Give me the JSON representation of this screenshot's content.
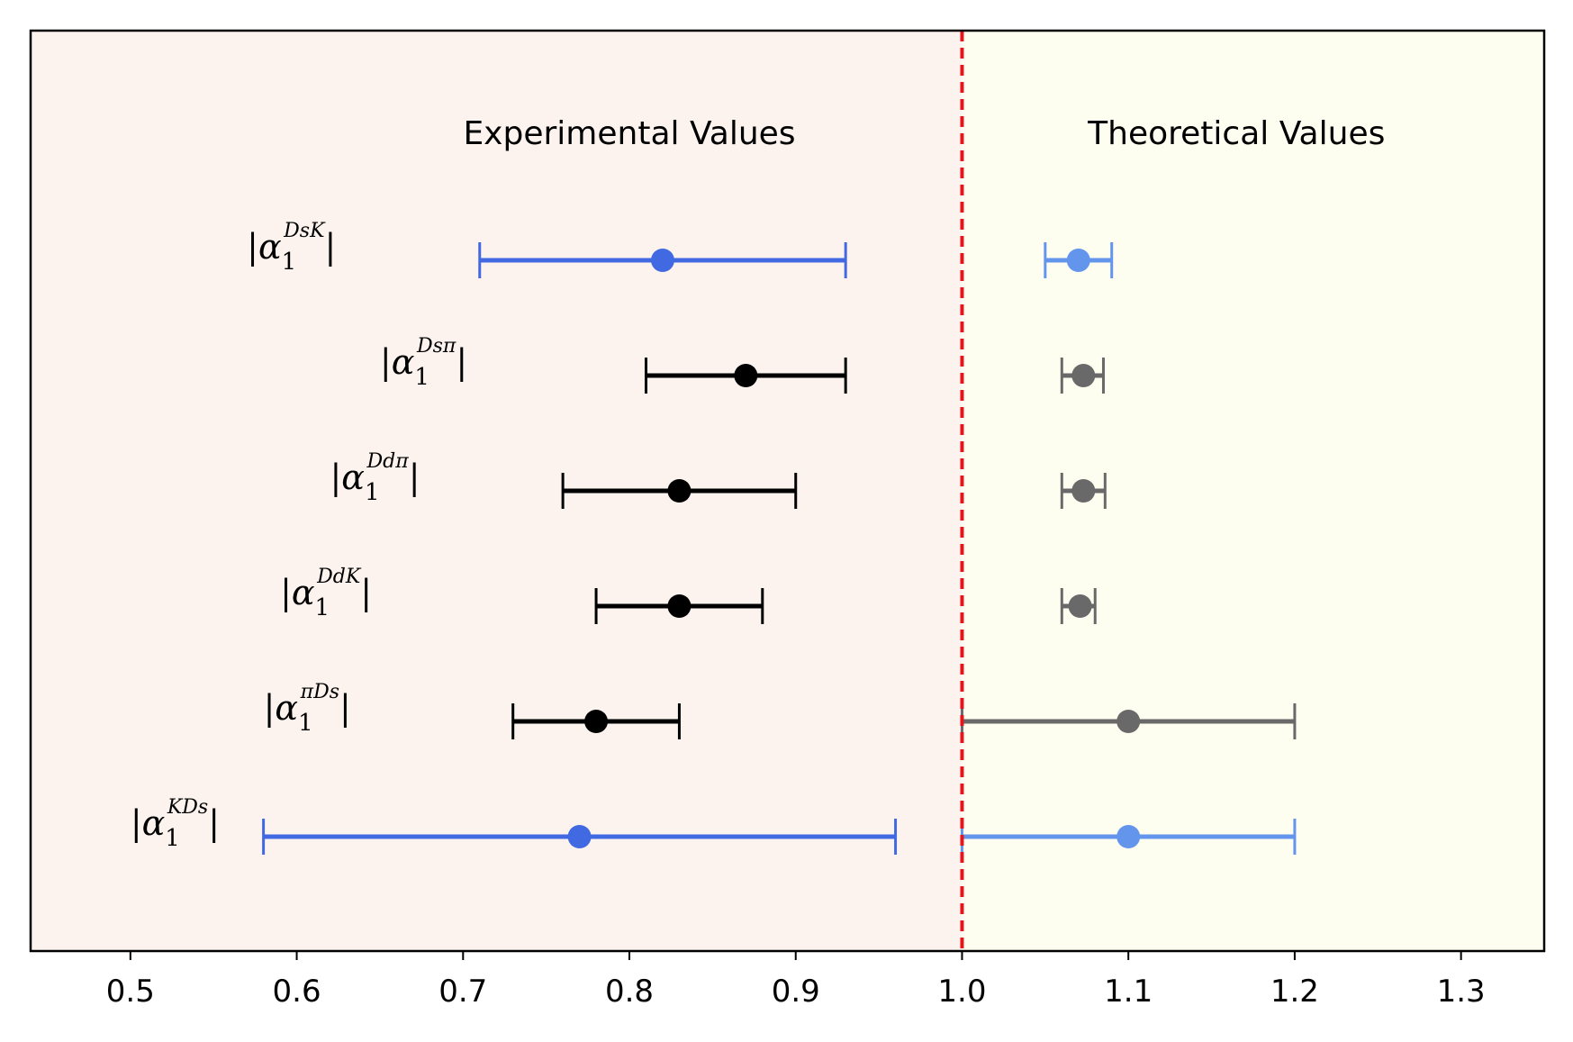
{
  "chart_data": {
    "type": "scatter",
    "title": "",
    "xlabel": "",
    "ylabel": "",
    "xlim": [
      0.44,
      1.35
    ],
    "xticks": [
      0.5,
      0.6,
      0.7,
      0.8,
      0.9,
      1.0,
      1.1,
      1.2,
      1.3
    ],
    "xtick_labels": [
      "0.5",
      "0.6",
      "0.7",
      "0.8",
      "0.9",
      "1.0",
      "1.1",
      "1.2",
      "1.3"
    ],
    "grid": false,
    "divider": {
      "x": 1.0,
      "color": "#e8141b",
      "style": "dashed"
    },
    "regions": [
      {
        "label": "Experimental Values",
        "x_range": [
          0.44,
          1.0
        ],
        "color": "#fdf3ee"
      },
      {
        "label": "Theoretical Values",
        "x_range": [
          1.0,
          1.35
        ],
        "color": "#fefef0"
      }
    ],
    "rows": [
      {
        "label_base": "|α",
        "label_sub": "1",
        "label_sup": "DsK",
        "label_close": "|",
        "experimental": {
          "value": 0.82,
          "low": 0.71,
          "high": 0.93,
          "color": "#4169e1"
        },
        "theoretical": {
          "value": 1.07,
          "low": 1.05,
          "high": 1.09,
          "color": "#6495ed"
        }
      },
      {
        "label_base": "|α",
        "label_sub": "1",
        "label_sup": "Dsπ",
        "label_close": "|",
        "experimental": {
          "value": 0.87,
          "low": 0.81,
          "high": 0.93,
          "color": "#000000"
        },
        "theoretical": {
          "value": 1.073,
          "low": 1.06,
          "high": 1.085,
          "color": "#696969"
        }
      },
      {
        "label_base": "|α",
        "label_sub": "1",
        "label_sup": "Ddπ",
        "label_close": "|",
        "experimental": {
          "value": 0.83,
          "low": 0.76,
          "high": 0.9,
          "color": "#000000"
        },
        "theoretical": {
          "value": 1.073,
          "low": 1.06,
          "high": 1.086,
          "color": "#696969"
        }
      },
      {
        "label_base": "|α",
        "label_sub": "1",
        "label_sup": "DdK",
        "label_close": "|",
        "experimental": {
          "value": 0.83,
          "low": 0.78,
          "high": 0.88,
          "color": "#000000"
        },
        "theoretical": {
          "value": 1.071,
          "low": 1.06,
          "high": 1.08,
          "color": "#696969"
        }
      },
      {
        "label_base": "|α",
        "label_sub": "1",
        "label_sup": "πDs",
        "label_close": "|",
        "experimental": {
          "value": 0.78,
          "low": 0.73,
          "high": 0.83,
          "color": "#000000"
        },
        "theoretical": {
          "value": 1.1,
          "low": 1.0,
          "high": 1.2,
          "color": "#696969"
        }
      },
      {
        "label_base": "|α",
        "label_sub": "1",
        "label_sup": "KDs",
        "label_close": "|",
        "experimental": {
          "value": 0.77,
          "low": 0.58,
          "high": 0.96,
          "color": "#4169e1"
        },
        "theoretical": {
          "value": 1.1,
          "low": 1.0,
          "high": 1.2,
          "color": "#6495ed"
        }
      }
    ]
  }
}
